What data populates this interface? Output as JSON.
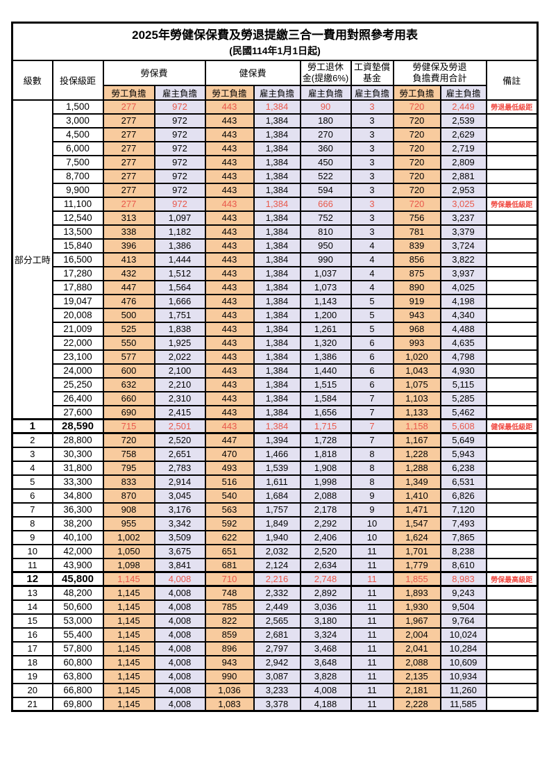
{
  "title": "2025年勞健保保費及勞退提繳三合一費用對照參考用表",
  "subtitle": "(民國114年1月1日起)",
  "header": {
    "level": "級數",
    "salary": "投保級距",
    "labor_insurance": "勞保費",
    "health_insurance": "健保費",
    "pension_line1": "勞工退休",
    "pension_line2": "金(提繳6%)",
    "wage_fund_line1": "工資墊償",
    "wage_fund_line2": "基金",
    "total_line1": "勞健保及勞退",
    "total_line2": "負擔費用合計",
    "employee_burden": "勞工負擔",
    "employer_burden": "雇主負擔",
    "remark": "備註"
  },
  "part_time_label": "部分工時",
  "colors": {
    "employee_bg": "#F8CB9E",
    "employer_bg": "#E3E1F1",
    "highlight_value_text": "#E9584B",
    "remark_text": "#F04A42",
    "border": "#000000"
  },
  "rows": [
    {
      "level": null,
      "salary": "1,500",
      "values": [
        "277",
        "972",
        "443",
        "1,384",
        "90",
        "3",
        "720",
        "2,449"
      ],
      "remark": "勞退最低級距",
      "red": true
    },
    {
      "level": null,
      "salary": "3,000",
      "values": [
        "277",
        "972",
        "443",
        "1,384",
        "180",
        "3",
        "720",
        "2,539"
      ]
    },
    {
      "level": null,
      "salary": "4,500",
      "values": [
        "277",
        "972",
        "443",
        "1,384",
        "270",
        "3",
        "720",
        "2,629"
      ]
    },
    {
      "level": null,
      "salary": "6,000",
      "values": [
        "277",
        "972",
        "443",
        "1,384",
        "360",
        "3",
        "720",
        "2,719"
      ]
    },
    {
      "level": null,
      "salary": "7,500",
      "values": [
        "277",
        "972",
        "443",
        "1,384",
        "450",
        "3",
        "720",
        "2,809"
      ]
    },
    {
      "level": null,
      "salary": "8,700",
      "values": [
        "277",
        "972",
        "443",
        "1,384",
        "522",
        "3",
        "720",
        "2,881"
      ]
    },
    {
      "level": null,
      "salary": "9,900",
      "values": [
        "277",
        "972",
        "443",
        "1,384",
        "594",
        "3",
        "720",
        "2,953"
      ]
    },
    {
      "level": null,
      "salary": "11,100",
      "values": [
        "277",
        "972",
        "443",
        "1,384",
        "666",
        "3",
        "720",
        "3,025"
      ],
      "remark": "勞保最低級距",
      "red": true
    },
    {
      "level": null,
      "salary": "12,540",
      "values": [
        "313",
        "1,097",
        "443",
        "1,384",
        "752",
        "3",
        "756",
        "3,237"
      ]
    },
    {
      "level": null,
      "salary": "13,500",
      "values": [
        "338",
        "1,182",
        "443",
        "1,384",
        "810",
        "3",
        "781",
        "3,379"
      ]
    },
    {
      "level": null,
      "salary": "15,840",
      "values": [
        "396",
        "1,386",
        "443",
        "1,384",
        "950",
        "4",
        "839",
        "3,724"
      ]
    },
    {
      "level": null,
      "salary": "16,500",
      "values": [
        "413",
        "1,444",
        "443",
        "1,384",
        "990",
        "4",
        "856",
        "3,822"
      ]
    },
    {
      "level": null,
      "salary": "17,280",
      "values": [
        "432",
        "1,512",
        "443",
        "1,384",
        "1,037",
        "4",
        "875",
        "3,937"
      ]
    },
    {
      "level": null,
      "salary": "17,880",
      "values": [
        "447",
        "1,564",
        "443",
        "1,384",
        "1,073",
        "4",
        "890",
        "4,025"
      ]
    },
    {
      "level": null,
      "salary": "19,047",
      "values": [
        "476",
        "1,666",
        "443",
        "1,384",
        "1,143",
        "5",
        "919",
        "4,198"
      ]
    },
    {
      "level": null,
      "salary": "20,008",
      "values": [
        "500",
        "1,751",
        "443",
        "1,384",
        "1,200",
        "5",
        "943",
        "4,340"
      ]
    },
    {
      "level": null,
      "salary": "21,009",
      "values": [
        "525",
        "1,838",
        "443",
        "1,384",
        "1,261",
        "5",
        "968",
        "4,488"
      ]
    },
    {
      "level": null,
      "salary": "22,000",
      "values": [
        "550",
        "1,925",
        "443",
        "1,384",
        "1,320",
        "6",
        "993",
        "4,635"
      ]
    },
    {
      "level": null,
      "salary": "23,100",
      "values": [
        "577",
        "2,022",
        "443",
        "1,384",
        "1,386",
        "6",
        "1,020",
        "4,798"
      ]
    },
    {
      "level": null,
      "salary": "24,000",
      "values": [
        "600",
        "2,100",
        "443",
        "1,384",
        "1,440",
        "6",
        "1,043",
        "4,930"
      ]
    },
    {
      "level": null,
      "salary": "25,250",
      "values": [
        "632",
        "2,210",
        "443",
        "1,384",
        "1,515",
        "6",
        "1,075",
        "5,115"
      ]
    },
    {
      "level": null,
      "salary": "26,400",
      "values": [
        "660",
        "2,310",
        "443",
        "1,384",
        "1,584",
        "7",
        "1,103",
        "5,285"
      ]
    },
    {
      "level": null,
      "salary": "27,600",
      "values": [
        "690",
        "2,415",
        "443",
        "1,384",
        "1,656",
        "7",
        "1,133",
        "5,462"
      ]
    },
    {
      "level": "1",
      "salary": "28,590",
      "values": [
        "715",
        "2,501",
        "443",
        "1,384",
        "1,715",
        "7",
        "1,158",
        "5,608"
      ],
      "remark": "健保最低級距",
      "red": true,
      "bold": true
    },
    {
      "level": "2",
      "salary": "28,800",
      "values": [
        "720",
        "2,520",
        "447",
        "1,394",
        "1,728",
        "7",
        "1,167",
        "5,649"
      ]
    },
    {
      "level": "3",
      "salary": "30,300",
      "values": [
        "758",
        "2,651",
        "470",
        "1,466",
        "1,818",
        "8",
        "1,228",
        "5,943"
      ]
    },
    {
      "level": "4",
      "salary": "31,800",
      "values": [
        "795",
        "2,783",
        "493",
        "1,539",
        "1,908",
        "8",
        "1,288",
        "6,238"
      ]
    },
    {
      "level": "5",
      "salary": "33,300",
      "values": [
        "833",
        "2,914",
        "516",
        "1,611",
        "1,998",
        "8",
        "1,349",
        "6,531"
      ]
    },
    {
      "level": "6",
      "salary": "34,800",
      "values": [
        "870",
        "3,045",
        "540",
        "1,684",
        "2,088",
        "9",
        "1,410",
        "6,826"
      ]
    },
    {
      "level": "7",
      "salary": "36,300",
      "values": [
        "908",
        "3,176",
        "563",
        "1,757",
        "2,178",
        "9",
        "1,471",
        "7,120"
      ]
    },
    {
      "level": "8",
      "salary": "38,200",
      "values": [
        "955",
        "3,342",
        "592",
        "1,849",
        "2,292",
        "10",
        "1,547",
        "7,493"
      ]
    },
    {
      "level": "9",
      "salary": "40,100",
      "values": [
        "1,002",
        "3,509",
        "622",
        "1,940",
        "2,406",
        "10",
        "1,624",
        "7,865"
      ]
    },
    {
      "level": "10",
      "salary": "42,000",
      "values": [
        "1,050",
        "3,675",
        "651",
        "2,032",
        "2,520",
        "11",
        "1,701",
        "8,238"
      ]
    },
    {
      "level": "11",
      "salary": "43,900",
      "values": [
        "1,098",
        "3,841",
        "681",
        "2,124",
        "2,634",
        "11",
        "1,779",
        "8,610"
      ]
    },
    {
      "level": "12",
      "salary": "45,800",
      "values": [
        "1,145",
        "4,008",
        "710",
        "2,216",
        "2,748",
        "11",
        "1,855",
        "8,983"
      ],
      "remark": "勞保最高級距",
      "red": true,
      "bold": true
    },
    {
      "level": "13",
      "salary": "48,200",
      "values": [
        "1,145",
        "4,008",
        "748",
        "2,332",
        "2,892",
        "11",
        "1,893",
        "9,243"
      ]
    },
    {
      "level": "14",
      "salary": "50,600",
      "values": [
        "1,145",
        "4,008",
        "785",
        "2,449",
        "3,036",
        "11",
        "1,930",
        "9,504"
      ]
    },
    {
      "level": "15",
      "salary": "53,000",
      "values": [
        "1,145",
        "4,008",
        "822",
        "2,565",
        "3,180",
        "11",
        "1,967",
        "9,764"
      ]
    },
    {
      "level": "16",
      "salary": "55,400",
      "values": [
        "1,145",
        "4,008",
        "859",
        "2,681",
        "3,324",
        "11",
        "2,004",
        "10,024"
      ]
    },
    {
      "level": "17",
      "salary": "57,800",
      "values": [
        "1,145",
        "4,008",
        "896",
        "2,797",
        "3,468",
        "11",
        "2,041",
        "10,284"
      ]
    },
    {
      "level": "18",
      "salary": "60,800",
      "values": [
        "1,145",
        "4,008",
        "943",
        "2,942",
        "3,648",
        "11",
        "2,088",
        "10,609"
      ]
    },
    {
      "level": "19",
      "salary": "63,800",
      "values": [
        "1,145",
        "4,008",
        "990",
        "3,087",
        "3,828",
        "11",
        "2,135",
        "10,934"
      ]
    },
    {
      "level": "20",
      "salary": "66,800",
      "values": [
        "1,145",
        "4,008",
        "1,036",
        "3,233",
        "4,008",
        "11",
        "2,181",
        "11,260"
      ]
    },
    {
      "level": "21",
      "salary": "69,800",
      "values": [
        "1,145",
        "4,008",
        "1,083",
        "3,378",
        "4,188",
        "11",
        "2,228",
        "11,585"
      ]
    }
  ]
}
